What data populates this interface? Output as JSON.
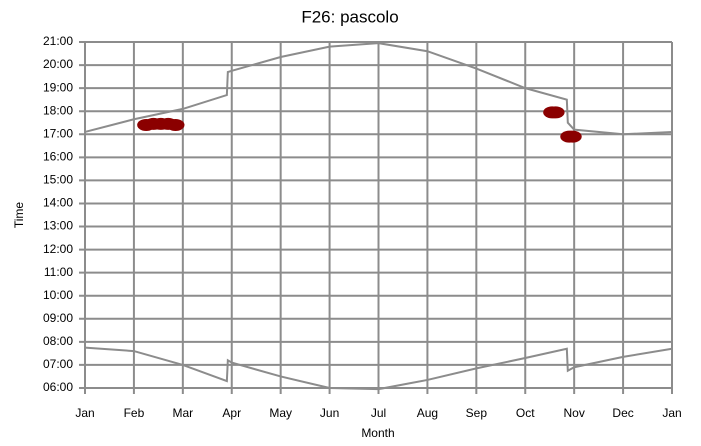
{
  "chart_data": {
    "type": "line",
    "title": "F26: pascolo",
    "xlabel": "Month",
    "ylabel": "Time",
    "xlim": [
      0,
      12
    ],
    "xticks": [
      {
        "value": 0,
        "label": "Jan"
      },
      {
        "value": 1,
        "label": "Feb"
      },
      {
        "value": 2,
        "label": "Mar"
      },
      {
        "value": 3,
        "label": "Apr"
      },
      {
        "value": 4,
        "label": "May"
      },
      {
        "value": 5,
        "label": "Jun"
      },
      {
        "value": 6,
        "label": "Jul"
      },
      {
        "value": 7,
        "label": "Aug"
      },
      {
        "value": 8,
        "label": "Sep"
      },
      {
        "value": 9,
        "label": "Oct"
      },
      {
        "value": 10,
        "label": "Nov"
      },
      {
        "value": 11,
        "label": "Dec"
      },
      {
        "value": 12,
        "label": "Jan"
      }
    ],
    "ylim": [
      6,
      21
    ],
    "yticks": [
      {
        "value": 6,
        "label": "06:00"
      },
      {
        "value": 7,
        "label": "07:00"
      },
      {
        "value": 8,
        "label": "08:00"
      },
      {
        "value": 9,
        "label": "09:00"
      },
      {
        "value": 10,
        "label": "10:00"
      },
      {
        "value": 11,
        "label": "11:00"
      },
      {
        "value": 12,
        "label": "12:00"
      },
      {
        "value": 13,
        "label": "13:00"
      },
      {
        "value": 14,
        "label": "14:00"
      },
      {
        "value": 15,
        "label": "15:00"
      },
      {
        "value": 16,
        "label": "16:00"
      },
      {
        "value": 17,
        "label": "17:00"
      },
      {
        "value": 18,
        "label": "18:00"
      },
      {
        "value": 19,
        "label": "19:00"
      },
      {
        "value": 20,
        "label": "20:00"
      },
      {
        "value": 21,
        "label": "21:00"
      }
    ],
    "grid": true,
    "series": [
      {
        "type": "line",
        "color": "#8c8c8c",
        "x": [
          0,
          1,
          2,
          2.9,
          2.92,
          3,
          4,
          5,
          6,
          7,
          8,
          9,
          9.85,
          9.87,
          10,
          11,
          12
        ],
        "values": [
          17.1,
          17.65,
          18.1,
          18.7,
          19.7,
          19.75,
          20.35,
          20.8,
          20.95,
          20.6,
          19.85,
          19.0,
          18.5,
          17.5,
          17.2,
          17.0,
          17.1
        ]
      },
      {
        "type": "line",
        "color": "#8c8c8c",
        "x": [
          0,
          1,
          2,
          2.9,
          2.92,
          3,
          4,
          5,
          6,
          7,
          8,
          9,
          9.85,
          9.87,
          10,
          11,
          12
        ],
        "values": [
          7.75,
          7.6,
          7.0,
          6.3,
          7.2,
          7.1,
          6.5,
          6.0,
          5.95,
          6.35,
          6.85,
          7.3,
          7.7,
          6.75,
          6.9,
          7.35,
          7.7
        ]
      },
      {
        "type": "scatter",
        "color": "#8b0000",
        "x": [
          1.25,
          1.4,
          1.55,
          1.7,
          1.85,
          9.55,
          9.62,
          9.9,
          9.97
        ],
        "values": [
          17.4,
          17.45,
          17.45,
          17.45,
          17.4,
          17.95,
          17.95,
          16.9,
          16.9
        ]
      }
    ]
  }
}
